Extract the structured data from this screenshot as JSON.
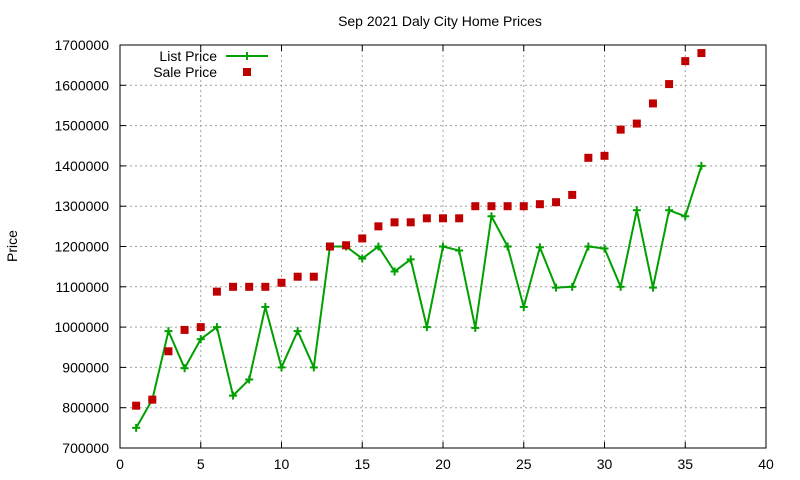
{
  "chart_data": {
    "type": "line",
    "title": "Sep 2021 Daly City Home Prices",
    "xlabel": "",
    "ylabel": "Price",
    "xlim": [
      0,
      40
    ],
    "ylim": [
      700000,
      1700000
    ],
    "x_ticks": [
      0,
      5,
      10,
      15,
      20,
      25,
      30,
      35,
      40
    ],
    "y_ticks": [
      700000,
      800000,
      900000,
      1000000,
      1100000,
      1200000,
      1300000,
      1400000,
      1500000,
      1600000,
      1700000
    ],
    "grid": true,
    "legend_position": "top-left",
    "x": [
      1,
      2,
      3,
      4,
      5,
      6,
      7,
      8,
      9,
      10,
      11,
      12,
      13,
      14,
      15,
      16,
      17,
      18,
      19,
      20,
      21,
      22,
      23,
      24,
      25,
      26,
      27,
      28,
      29,
      30,
      31,
      32,
      33,
      34,
      35,
      36
    ],
    "series": [
      {
        "name": "List Price",
        "style": "line-plus",
        "color": "#00a000",
        "values": [
          750000,
          820000,
          990000,
          898000,
          970000,
          1000000,
          830000,
          870000,
          1050000,
          900000,
          990000,
          900000,
          1200000,
          1200000,
          1170000,
          1200000,
          1138000,
          1168000,
          1000000,
          1200000,
          1190000,
          998000,
          1275000,
          1200000,
          1050000,
          1198000,
          1098000,
          1100000,
          1200000,
          1195000,
          1100000,
          1290000,
          1098000,
          1290000,
          1275000,
          1400000
        ]
      },
      {
        "name": "Sale Price",
        "style": "square",
        "color": "#c00000",
        "values": [
          805000,
          820000,
          940000,
          993000,
          1000000,
          1088000,
          1100000,
          1100000,
          1100000,
          1110000,
          1125000,
          1125000,
          1200000,
          1203000,
          1220000,
          1250000,
          1260000,
          1260000,
          1270000,
          1270000,
          1270000,
          1300000,
          1300000,
          1300000,
          1300000,
          1305000,
          1310000,
          1328000,
          1420000,
          1425000,
          1490000,
          1505000,
          1555000,
          1603000,
          1660000,
          1680000
        ]
      }
    ]
  }
}
